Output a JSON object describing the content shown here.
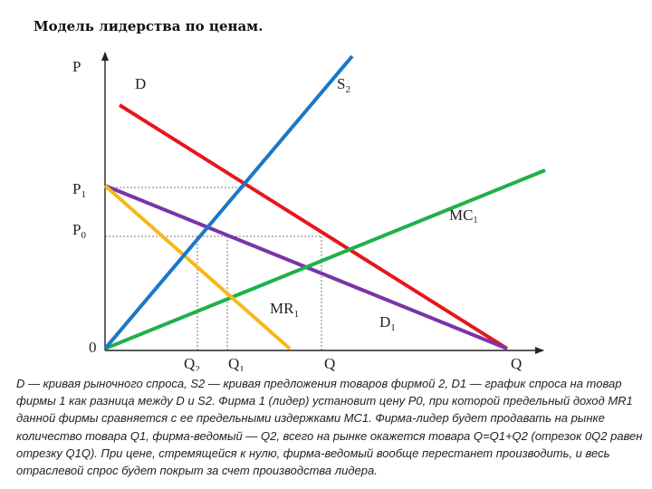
{
  "title": "Модель лидерства по ценам.",
  "axes": {
    "y_label": "P",
    "x_label": "Q",
    "origin_label": "0"
  },
  "price_labels": {
    "p1": "P",
    "p1_sub": "1",
    "p0": "P",
    "p0_sub": "0"
  },
  "quantity_labels": {
    "q2": "Q",
    "q2_sub": "2",
    "q1": "Q",
    "q1_sub": "1",
    "q": "Q"
  },
  "curves": {
    "d": {
      "label": "D",
      "color": "#e8161b"
    },
    "s2": {
      "label": "S",
      "sub": "2",
      "color": "#1a78c8"
    },
    "d1": {
      "label": "D",
      "sub": "1",
      "color": "#7a34a8"
    },
    "mr1": {
      "label": "MR",
      "sub": "1",
      "color": "#f7b81b"
    },
    "mc1": {
      "label": "MC",
      "sub": "1",
      "color": "#1eb14a"
    }
  },
  "caption": "D — кривая рыночного спроса, S2 — кривая предложения товаров фирмой 2, D1 — график спроса на товар фирмы 1 как разница между D и S2. Фирма 1 (лидер) установит цену P0, при которой предельный доход MR1 данной фирмы сравняется с ее предельными издержками MC1. Фирма-лидер будет продавать на рынке количество товара Q1, фирма-ведомый — Q2, всего на рынке окажется товара Q=Q1+Q2 (отрезок 0Q2 равен отрезку Q1Q). При цене, стремящейся к нулю, фирма-ведомый вообще перестанет производить, и весь отраслевой спрос будет покрыт за счет производства лидера."
}
